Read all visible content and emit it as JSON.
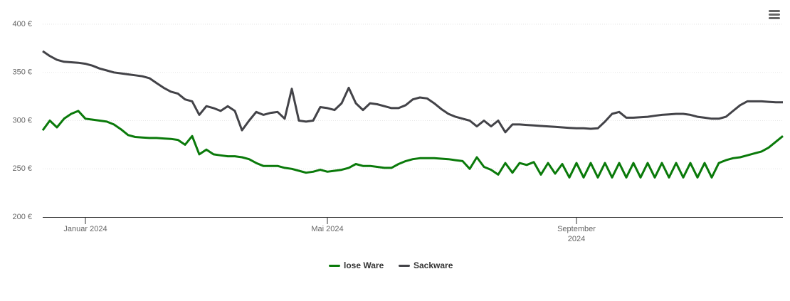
{
  "chart_data": {
    "type": "line",
    "categories": [
      null,
      null,
      null,
      null,
      null,
      null,
      "Januar 2024",
      null,
      null,
      null,
      null,
      null,
      null,
      null,
      null,
      null,
      null,
      null,
      null,
      null,
      null,
      null,
      null,
      null,
      null,
      null,
      null,
      null,
      null,
      null,
      null,
      null,
      null,
      null,
      null,
      null,
      null,
      null,
      null,
      null,
      "Mai 2024",
      null,
      null,
      null,
      null,
      null,
      null,
      null,
      null,
      null,
      null,
      null,
      null,
      null,
      null,
      null,
      null,
      null,
      null,
      null,
      null,
      null,
      null,
      null,
      null,
      null,
      null,
      null,
      null,
      null,
      null,
      null,
      null,
      null,
      null,
      "September 2024",
      null,
      null,
      null,
      null,
      null,
      null,
      null,
      null,
      null,
      null,
      null,
      null,
      null,
      null,
      null,
      null,
      null,
      null,
      null,
      null,
      null,
      null,
      null,
      null,
      null,
      null,
      null,
      null,
      null
    ],
    "series": [
      {
        "name": "lose Ware",
        "color": "#0a7a0a",
        "values": [
          290,
          300,
          293,
          302,
          307,
          310,
          302,
          301,
          300,
          299,
          296,
          291,
          285,
          283,
          282.5,
          282,
          282,
          281.5,
          281,
          280,
          275,
          284,
          265,
          270,
          265,
          264,
          263,
          263,
          262,
          260,
          256,
          253,
          253,
          253,
          251,
          250,
          248,
          246,
          247,
          249,
          247,
          248,
          249,
          251,
          255,
          253,
          253,
          252,
          251,
          251,
          255,
          258,
          260,
          261,
          261,
          261,
          260.5,
          260,
          259,
          258,
          250,
          262,
          252,
          249,
          244,
          256,
          246,
          256,
          254,
          257,
          244,
          256,
          245,
          255,
          241,
          256,
          241,
          256,
          241,
          256,
          241,
          256,
          241,
          256,
          241,
          256,
          241,
          256,
          241,
          256,
          241,
          256,
          241,
          256,
          241,
          256,
          259,
          261,
          262,
          264,
          266,
          268,
          272,
          278,
          284
        ]
      },
      {
        "name": "Sackware",
        "color": "#434348",
        "values": [
          372,
          367,
          363,
          361,
          360.5,
          360,
          359,
          357,
          354,
          352,
          350,
          349,
          348,
          347,
          346,
          344,
          339,
          334,
          330,
          328,
          322,
          320,
          306,
          315,
          313,
          310,
          315,
          310,
          290,
          300,
          309,
          306,
          308,
          309,
          302,
          333,
          300,
          299,
          300,
          314,
          313,
          311,
          318,
          334,
          318,
          311,
          318,
          317,
          315,
          313,
          313,
          316,
          322,
          324,
          323,
          318,
          312,
          307,
          304,
          302,
          300,
          294,
          300,
          294,
          300,
          288,
          296,
          296,
          295.5,
          295,
          294.5,
          294,
          293.5,
          293,
          292.5,
          292,
          292,
          291.5,
          292,
          299,
          307,
          309,
          303,
          303,
          303.5,
          304,
          305,
          306,
          306.5,
          307,
          307,
          306,
          304,
          303,
          302,
          302,
          304,
          310,
          316,
          320,
          320,
          320,
          319.5,
          319,
          319
        ]
      }
    ],
    "ylim": [
      200,
      400
    ],
    "yticks": [
      {
        "value": 200,
        "label": "200 €"
      },
      {
        "value": 250,
        "label": "250 €"
      },
      {
        "value": 300,
        "label": "300 €"
      },
      {
        "value": 350,
        "label": "350 €"
      },
      {
        "value": 400,
        "label": "400 €"
      }
    ],
    "grid": true
  }
}
